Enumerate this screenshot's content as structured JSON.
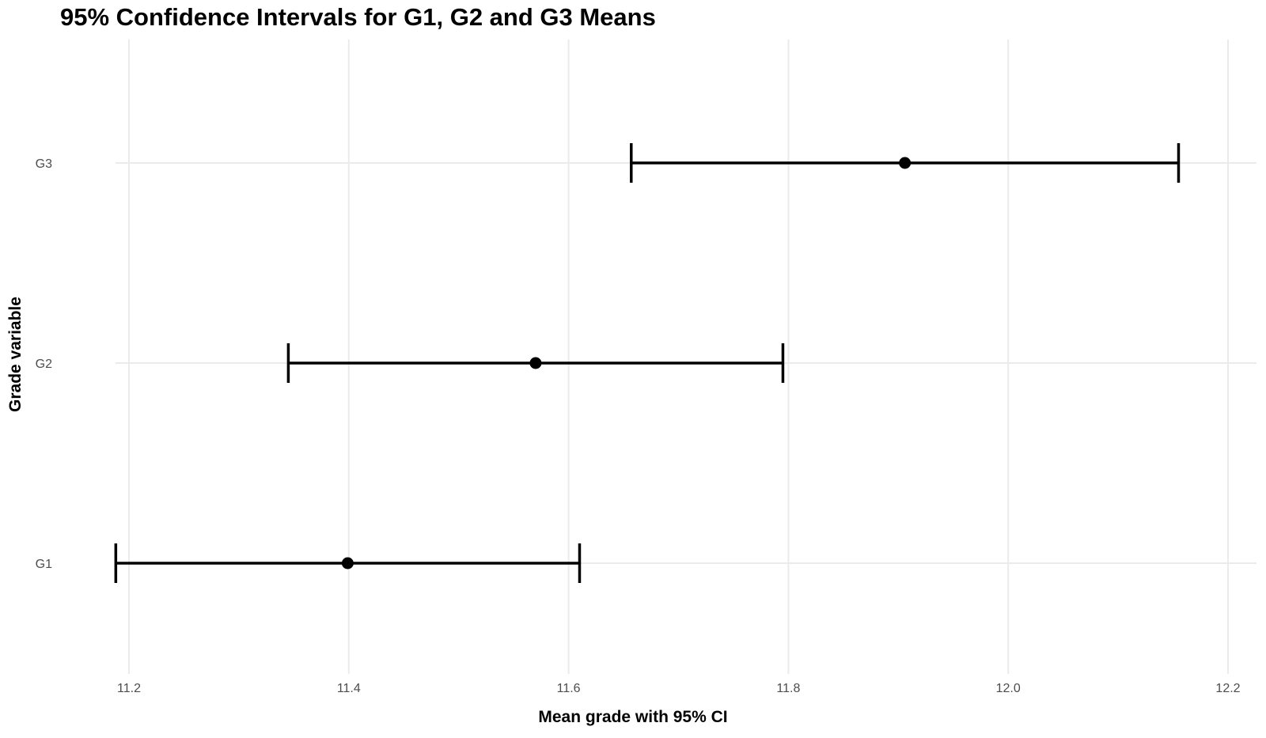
{
  "chart_data": {
    "type": "errorbar",
    "title": "95% Confidence Intervals for G1, G2 and G3 Means",
    "xlabel": "Mean grade with 95% CI",
    "ylabel": "Grade variable",
    "categories": [
      "G1",
      "G2",
      "G3"
    ],
    "points": [
      {
        "label": "G1",
        "mean": 11.399,
        "lower": 11.188,
        "upper": 11.61
      },
      {
        "label": "G2",
        "mean": 11.57,
        "lower": 11.345,
        "upper": 11.795
      },
      {
        "label": "G3",
        "mean": 11.906,
        "lower": 11.657,
        "upper": 12.155
      }
    ],
    "xlim": [
      11.14,
      12.2
    ],
    "xticks": [
      11.2,
      11.4,
      11.6,
      11.8,
      12.0,
      12.2
    ],
    "xtick_labels": [
      "11.2",
      "11.4",
      "11.6",
      "11.8",
      "12.0",
      "12.2"
    ],
    "grid": true,
    "colors": {
      "grid": "#ebebeb",
      "marks": "#000000",
      "tick_text": "#4d4d4d"
    }
  }
}
